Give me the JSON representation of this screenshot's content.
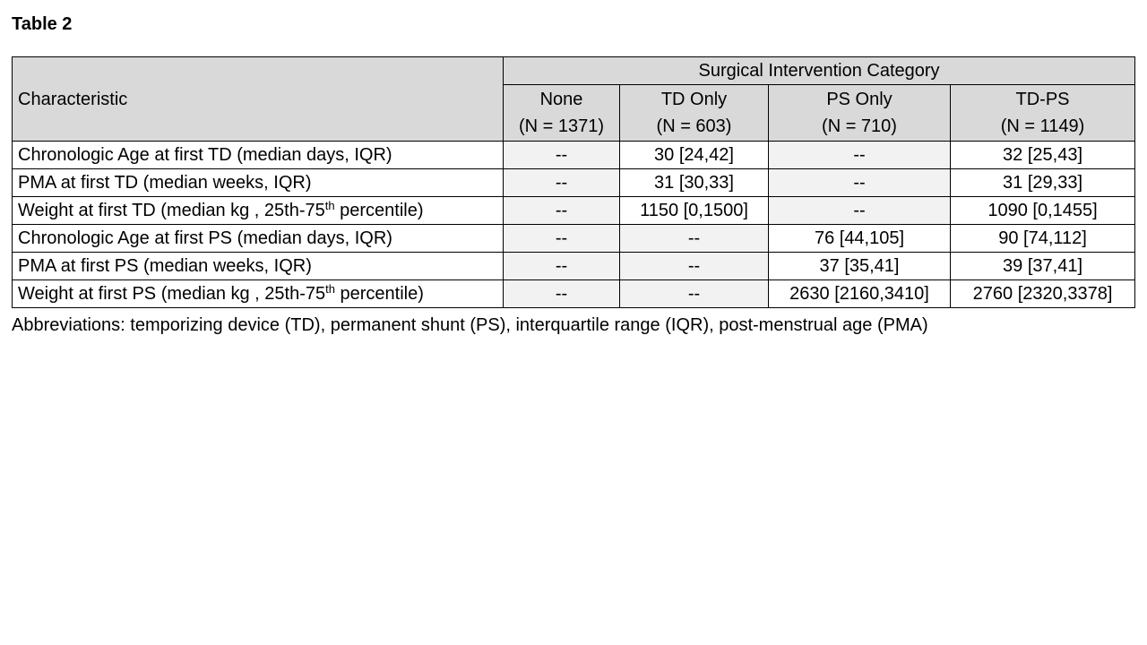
{
  "title": "Table 2",
  "header": {
    "characteristic": "Characteristic",
    "group_label": "Surgical Intervention Category",
    "columns": [
      {
        "name": "None",
        "n": "(N = 1371)"
      },
      {
        "name": "TD Only",
        "n": "(N = 603)"
      },
      {
        "name": "PS Only",
        "n": "(N = 710)"
      },
      {
        "name": "TD-PS",
        "n": "(N = 1149)"
      }
    ]
  },
  "rows": [
    {
      "label": "Chronologic Age at first TD (median days, IQR)",
      "values": [
        "--",
        "30 [24,42]",
        "--",
        "32 [25,43]"
      ]
    },
    {
      "label": "PMA at first TD (median weeks, IQR)",
      "values": [
        "--",
        "31 [30,33]",
        "--",
        "31 [29,33]"
      ]
    },
    {
      "label_pre": "Weight at first TD (median kg , 25th-75",
      "label_sup": "th",
      "label_post": " percentile)",
      "values": [
        "--",
        "1150 [0,1500]",
        "--",
        "1090 [0,1455]"
      ]
    },
    {
      "label": "Chronologic Age at first PS (median days, IQR)",
      "values": [
        "--",
        "--",
        "76 [44,105]",
        "90 [74,112]"
      ]
    },
    {
      "label": "PMA at first PS (median weeks, IQR)",
      "values": [
        "--",
        "--",
        "37 [35,41]",
        "39 [37,41]"
      ]
    },
    {
      "label_pre": "Weight at first PS (median kg , 25th-75",
      "label_sup": "th",
      "label_post": " percentile)",
      "values": [
        "--",
        "--",
        "2630 [2160,3410]",
        "2760 [2320,3378]"
      ]
    }
  ],
  "footnote": "Abbreviations: temporizing device (TD), permanent shunt (PS), interquartile range (IQR), post-menstrual age (PMA)"
}
